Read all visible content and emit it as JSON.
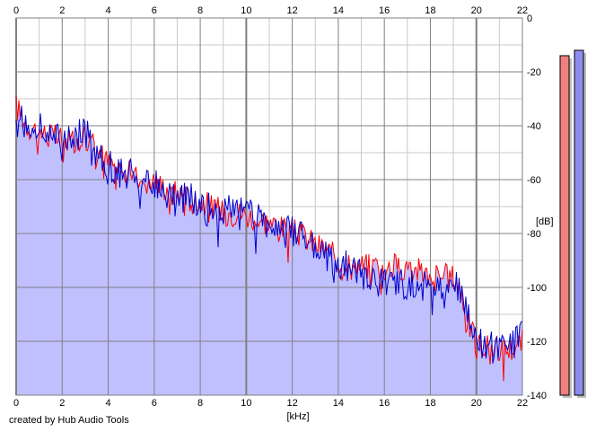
{
  "app": {
    "credit": "created by Hub Audio Tools"
  },
  "colors": {
    "background": "#ffffff",
    "plot_bg": "#ffffff",
    "fill": "#c0c0ff",
    "left_channel": "#ff0000",
    "right_channel": "#0000cc",
    "grid_major": "#808080",
    "grid_minor": "#c8c8c8",
    "meter_left": "#f08080",
    "meter_right": "#8c8cf0"
  },
  "chart_data": {
    "type": "line",
    "title": "",
    "xlabel": "[kHz]",
    "ylabel": "[dB]",
    "xlim": [
      0,
      22
    ],
    "ylim": [
      -140,
      0
    ],
    "x_ticks": [
      "0",
      "2",
      "4",
      "6",
      "8",
      "10",
      "12",
      "14",
      "16",
      "18",
      "20",
      "22"
    ],
    "y_ticks": [
      "0",
      "-20",
      "-40",
      "-60",
      "-80",
      "-100",
      "-120",
      "-140"
    ],
    "grid": true,
    "x": [
      0.0,
      0.5,
      1.0,
      1.5,
      2.0,
      2.5,
      3.0,
      3.5,
      4.0,
      4.5,
      5.0,
      5.5,
      6.0,
      6.5,
      7.0,
      7.5,
      8.0,
      8.5,
      9.0,
      9.5,
      10.0,
      10.5,
      11.0,
      11.5,
      12.0,
      12.5,
      13.0,
      13.5,
      14.0,
      14.5,
      15.0,
      15.5,
      16.0,
      16.5,
      17.0,
      17.5,
      18.0,
      18.5,
      19.0,
      19.3,
      19.6,
      20.0,
      20.5,
      21.0,
      21.5,
      22.0
    ],
    "series": [
      {
        "name": "left",
        "color": "#ff0000",
        "values": [
          -33,
          -40,
          -42,
          -44,
          -45,
          -45,
          -44,
          -48,
          -54,
          -56,
          -58,
          -60,
          -61,
          -63,
          -65,
          -67,
          -68,
          -70,
          -72,
          -72,
          -73,
          -75,
          -76,
          -78,
          -79,
          -81,
          -84,
          -86,
          -90,
          -91,
          -92,
          -92,
          -93,
          -92,
          -93,
          -94,
          -95,
          -96,
          -96,
          -100,
          -112,
          -121,
          -122,
          -123,
          -123,
          -120
        ]
      },
      {
        "name": "right",
        "color": "#0000cc",
        "values": [
          -32,
          -40,
          -41,
          -43,
          -46,
          -45,
          -42,
          -50,
          -54,
          -57,
          -58,
          -59,
          -61,
          -63,
          -66,
          -67,
          -68,
          -70,
          -71,
          -72,
          -72,
          -74,
          -76,
          -78,
          -79,
          -82,
          -85,
          -88,
          -91,
          -92,
          -95,
          -97,
          -98,
          -98,
          -99,
          -99,
          -99,
          -99,
          -98,
          -100,
          -110,
          -121,
          -122,
          -122,
          -122,
          -118
        ]
      }
    ],
    "meters": {
      "min": -140,
      "max": 0,
      "left": -14,
      "right": -12
    }
  }
}
